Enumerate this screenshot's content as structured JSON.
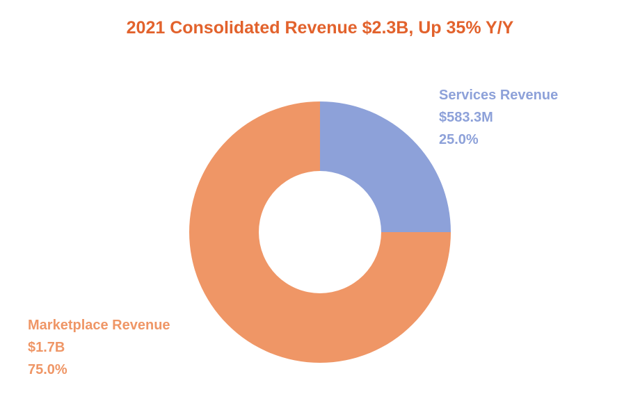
{
  "colors": {
    "title": "#e2622c",
    "services": "#8da1d9",
    "marketplace": "#ef9666"
  },
  "chart_data": {
    "type": "pie",
    "title": "2021 Consolidated Revenue $2.3B, Up 35% Y/Y",
    "slices": [
      {
        "name": "Services Revenue",
        "value_label": "$583.3M",
        "percent_label": "25.0%",
        "percent": 25.0
      },
      {
        "name": "Marketplace Revenue",
        "value_label": "$1.7B",
        "percent_label": "75.0%",
        "percent": 75.0
      }
    ]
  }
}
